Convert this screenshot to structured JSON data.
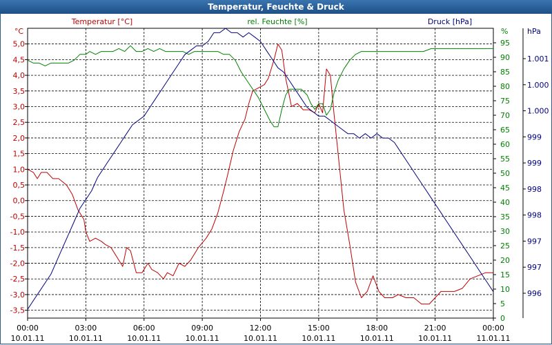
{
  "window": {
    "title": "Temperatur, Feuchte & Druck"
  },
  "chart_data": {
    "type": "line",
    "title": "Temperatur, Feuchte & Druck",
    "grid": true,
    "x_ticks": [
      {
        "time": "00:00",
        "date": "10.01.11"
      },
      {
        "time": "03:00",
        "date": "10.01.11"
      },
      {
        "time": "06:00",
        "date": "10.01.11"
      },
      {
        "time": "09:00",
        "date": "10.01.11"
      },
      {
        "time": "12:00",
        "date": "10.01.11"
      },
      {
        "time": "15:00",
        "date": "10.01.11"
      },
      {
        "time": "18:00",
        "date": "10.01.11"
      },
      {
        "time": "21:00",
        "date": "10.01.11"
      },
      {
        "time": "00:00",
        "date": "11.01.11"
      }
    ],
    "x_range_hours": [
      0,
      24
    ],
    "axes": {
      "temperature": {
        "title": "Temperatur [°C]",
        "unit": "°C",
        "color": "#c00000",
        "range": [
          -3.75,
          5.5
        ],
        "tick_labels": [
          "5,0",
          "4,5",
          "4,0",
          "3,5",
          "3,0",
          "2,5",
          "2,0",
          "1,5",
          "1,0",
          "0,5",
          "0,0",
          "-0,5",
          "-1,0",
          "-1,5",
          "-2,0",
          "-2,5",
          "-3,0",
          "-3,5"
        ]
      },
      "humidity": {
        "title": "rel. Feuchte [%]",
        "unit": "%",
        "color": "#008000",
        "range": [
          0,
          100
        ],
        "tick_labels": [
          "95",
          "90",
          "85",
          "80",
          "75",
          "70",
          "65",
          "60",
          "55",
          "50",
          "45",
          "40",
          "35",
          "30",
          "25",
          "20",
          "15",
          "10",
          "5",
          "0"
        ]
      },
      "pressure": {
        "title": "Druck [hPa]",
        "unit": "hPa",
        "color": "#000080",
        "range": [
          995.1,
          1001.7
        ],
        "tick_labels": [
          "1.001",
          "1.000",
          "1.000",
          "999",
          "999",
          "998",
          "998",
          "997",
          "997",
          "996"
        ]
      }
    },
    "series": [
      {
        "name": "Temperatur",
        "axis": "temperature",
        "color": "#c00000",
        "points": [
          [
            0,
            1.0
          ],
          [
            0.3,
            0.9
          ],
          [
            0.5,
            0.7
          ],
          [
            0.7,
            0.9
          ],
          [
            1.0,
            0.9
          ],
          [
            1.3,
            0.7
          ],
          [
            1.6,
            0.7
          ],
          [
            2.0,
            0.5
          ],
          [
            2.3,
            0.2
          ],
          [
            2.6,
            -0.3
          ],
          [
            2.9,
            -0.6
          ],
          [
            3.0,
            -1.0
          ],
          [
            3.2,
            -1.3
          ],
          [
            3.5,
            -1.2
          ],
          [
            3.8,
            -1.3
          ],
          [
            4.0,
            -1.4
          ],
          [
            4.3,
            -1.5
          ],
          [
            4.6,
            -1.8
          ],
          [
            4.9,
            -2.1
          ],
          [
            5.1,
            -1.5
          ],
          [
            5.3,
            -1.6
          ],
          [
            5.6,
            -2.3
          ],
          [
            5.9,
            -2.3
          ],
          [
            6.2,
            -2.0
          ],
          [
            6.4,
            -2.2
          ],
          [
            6.7,
            -2.3
          ],
          [
            7.0,
            -2.5
          ],
          [
            7.2,
            -2.3
          ],
          [
            7.5,
            -2.4
          ],
          [
            7.8,
            -2.0
          ],
          [
            8.1,
            -2.1
          ],
          [
            8.4,
            -1.9
          ],
          [
            8.8,
            -1.5
          ],
          [
            9.2,
            -1.2
          ],
          [
            9.5,
            -0.9
          ],
          [
            9.8,
            -0.4
          ],
          [
            10.1,
            0.3
          ],
          [
            10.3,
            0.8
          ],
          [
            10.6,
            1.6
          ],
          [
            10.9,
            2.2
          ],
          [
            11.2,
            2.6
          ],
          [
            11.4,
            3.1
          ],
          [
            11.6,
            3.5
          ],
          [
            11.9,
            3.6
          ],
          [
            12.2,
            3.7
          ],
          [
            12.4,
            3.9
          ],
          [
            12.7,
            4.5
          ],
          [
            12.9,
            5.0
          ],
          [
            13.1,
            4.8
          ],
          [
            13.3,
            3.9
          ],
          [
            13.6,
            3.0
          ],
          [
            13.9,
            3.1
          ],
          [
            14.2,
            2.9
          ],
          [
            14.5,
            2.9
          ],
          [
            14.8,
            2.8
          ],
          [
            15.0,
            3.1
          ],
          [
            15.2,
            2.8
          ],
          [
            15.4,
            4.2
          ],
          [
            15.6,
            4.0
          ],
          [
            15.8,
            2.7
          ],
          [
            16.0,
            1.5
          ],
          [
            16.3,
            -0.3
          ],
          [
            16.6,
            -1.4
          ],
          [
            16.9,
            -2.6
          ],
          [
            17.2,
            -3.1
          ],
          [
            17.5,
            -2.9
          ],
          [
            17.8,
            -2.4
          ],
          [
            18.1,
            -2.9
          ],
          [
            18.4,
            -3.1
          ],
          [
            18.8,
            -3.1
          ],
          [
            19.1,
            -3.0
          ],
          [
            19.5,
            -3.1
          ],
          [
            19.9,
            -3.1
          ],
          [
            20.3,
            -3.3
          ],
          [
            20.7,
            -3.3
          ],
          [
            21.0,
            -3.1
          ],
          [
            21.3,
            -2.9
          ],
          [
            21.7,
            -2.9
          ],
          [
            22.0,
            -2.9
          ],
          [
            22.4,
            -2.8
          ],
          [
            22.8,
            -2.5
          ],
          [
            23.2,
            -2.4
          ],
          [
            23.6,
            -2.3
          ],
          [
            24.0,
            -2.3
          ]
        ]
      },
      {
        "name": "rel. Feuchte",
        "axis": "humidity",
        "color": "#008000",
        "points": [
          [
            0,
            89
          ],
          [
            0.3,
            88
          ],
          [
            0.6,
            88
          ],
          [
            0.9,
            87
          ],
          [
            1.2,
            88
          ],
          [
            1.5,
            88
          ],
          [
            1.8,
            88
          ],
          [
            2.1,
            88
          ],
          [
            2.4,
            89
          ],
          [
            2.7,
            91
          ],
          [
            3.0,
            91
          ],
          [
            3.2,
            92
          ],
          [
            3.5,
            91
          ],
          [
            3.8,
            92
          ],
          [
            4.1,
            92
          ],
          [
            4.4,
            92
          ],
          [
            4.7,
            93
          ],
          [
            5.0,
            92
          ],
          [
            5.3,
            94
          ],
          [
            5.6,
            92
          ],
          [
            5.9,
            92
          ],
          [
            6.2,
            93
          ],
          [
            6.5,
            92
          ],
          [
            6.8,
            93
          ],
          [
            7.1,
            92
          ],
          [
            7.4,
            92
          ],
          [
            7.7,
            92
          ],
          [
            8.0,
            92
          ],
          [
            8.3,
            91
          ],
          [
            8.6,
            92
          ],
          [
            8.9,
            92
          ],
          [
            9.2,
            92
          ],
          [
            9.5,
            92
          ],
          [
            9.8,
            92
          ],
          [
            10.1,
            91
          ],
          [
            10.4,
            91
          ],
          [
            10.7,
            89
          ],
          [
            11.0,
            85
          ],
          [
            11.3,
            82
          ],
          [
            11.6,
            79
          ],
          [
            11.9,
            76
          ],
          [
            12.2,
            72
          ],
          [
            12.5,
            68
          ],
          [
            12.7,
            66
          ],
          [
            12.9,
            66
          ],
          [
            13.1,
            72
          ],
          [
            13.3,
            77
          ],
          [
            13.5,
            79
          ],
          [
            13.8,
            79
          ],
          [
            14.1,
            79
          ],
          [
            14.4,
            77
          ],
          [
            14.6,
            74
          ],
          [
            14.8,
            72
          ],
          [
            15.0,
            74
          ],
          [
            15.2,
            74
          ],
          [
            15.4,
            70
          ],
          [
            15.6,
            72
          ],
          [
            15.8,
            78
          ],
          [
            16.0,
            82
          ],
          [
            16.3,
            86
          ],
          [
            16.6,
            89
          ],
          [
            16.9,
            91
          ],
          [
            17.2,
            92
          ],
          [
            17.6,
            92
          ],
          [
            18.0,
            92
          ],
          [
            18.4,
            92
          ],
          [
            18.8,
            92
          ],
          [
            19.2,
            92
          ],
          [
            19.6,
            92
          ],
          [
            20.0,
            92
          ],
          [
            20.4,
            92
          ],
          [
            20.8,
            93
          ],
          [
            21.2,
            93
          ],
          [
            21.6,
            93
          ],
          [
            22.0,
            93
          ],
          [
            22.4,
            93
          ],
          [
            22.8,
            93
          ],
          [
            23.2,
            93
          ],
          [
            23.6,
            93
          ],
          [
            24.0,
            93
          ]
        ]
      },
      {
        "name": "Druck",
        "axis": "pressure",
        "color": "#000080",
        "points": [
          [
            0,
            995.3
          ],
          [
            0.3,
            995.5
          ],
          [
            0.6,
            995.7
          ],
          [
            0.9,
            995.9
          ],
          [
            1.2,
            996.1
          ],
          [
            1.5,
            996.4
          ],
          [
            1.8,
            996.7
          ],
          [
            2.1,
            997.0
          ],
          [
            2.4,
            997.3
          ],
          [
            2.7,
            997.6
          ],
          [
            3.0,
            997.8
          ],
          [
            3.3,
            998.0
          ],
          [
            3.6,
            998.3
          ],
          [
            3.9,
            998.5
          ],
          [
            4.2,
            998.7
          ],
          [
            4.5,
            998.9
          ],
          [
            4.8,
            999.1
          ],
          [
            5.1,
            999.3
          ],
          [
            5.4,
            999.5
          ],
          [
            5.7,
            999.6
          ],
          [
            6.0,
            999.7
          ],
          [
            6.3,
            999.9
          ],
          [
            6.6,
            1000.1
          ],
          [
            6.9,
            1000.3
          ],
          [
            7.2,
            1000.5
          ],
          [
            7.5,
            1000.7
          ],
          [
            7.8,
            1000.9
          ],
          [
            8.1,
            1001.1
          ],
          [
            8.4,
            1001.2
          ],
          [
            8.7,
            1001.3
          ],
          [
            9.0,
            1001.3
          ],
          [
            9.3,
            1001.4
          ],
          [
            9.6,
            1001.6
          ],
          [
            9.9,
            1001.6
          ],
          [
            10.2,
            1001.7
          ],
          [
            10.5,
            1001.6
          ],
          [
            10.8,
            1001.6
          ],
          [
            11.1,
            1001.5
          ],
          [
            11.4,
            1001.6
          ],
          [
            11.7,
            1001.5
          ],
          [
            12.0,
            1001.4
          ],
          [
            12.3,
            1001.2
          ],
          [
            12.6,
            1001.0
          ],
          [
            12.9,
            1000.8
          ],
          [
            13.2,
            1000.7
          ],
          [
            13.5,
            1000.5
          ],
          [
            13.8,
            1000.3
          ],
          [
            14.1,
            1000.1
          ],
          [
            14.4,
            999.9
          ],
          [
            14.7,
            999.8
          ],
          [
            15.0,
            999.7
          ],
          [
            15.3,
            999.7
          ],
          [
            15.6,
            999.6
          ],
          [
            15.9,
            999.5
          ],
          [
            16.2,
            999.4
          ],
          [
            16.5,
            999.3
          ],
          [
            16.8,
            999.3
          ],
          [
            17.1,
            999.2
          ],
          [
            17.4,
            999.3
          ],
          [
            17.7,
            999.2
          ],
          [
            18.0,
            999.3
          ],
          [
            18.3,
            999.2
          ],
          [
            18.6,
            999.2
          ],
          [
            18.9,
            999.1
          ],
          [
            19.2,
            998.9
          ],
          [
            19.5,
            998.7
          ],
          [
            19.8,
            998.5
          ],
          [
            20.1,
            998.3
          ],
          [
            20.4,
            998.1
          ],
          [
            20.7,
            997.9
          ],
          [
            21.0,
            997.7
          ],
          [
            21.3,
            997.5
          ],
          [
            21.6,
            997.3
          ],
          [
            21.9,
            997.1
          ],
          [
            22.2,
            996.9
          ],
          [
            22.5,
            996.7
          ],
          [
            22.8,
            996.5
          ],
          [
            23.1,
            996.3
          ],
          [
            23.4,
            996.1
          ],
          [
            23.7,
            995.9
          ],
          [
            24.0,
            995.7
          ]
        ]
      }
    ]
  }
}
